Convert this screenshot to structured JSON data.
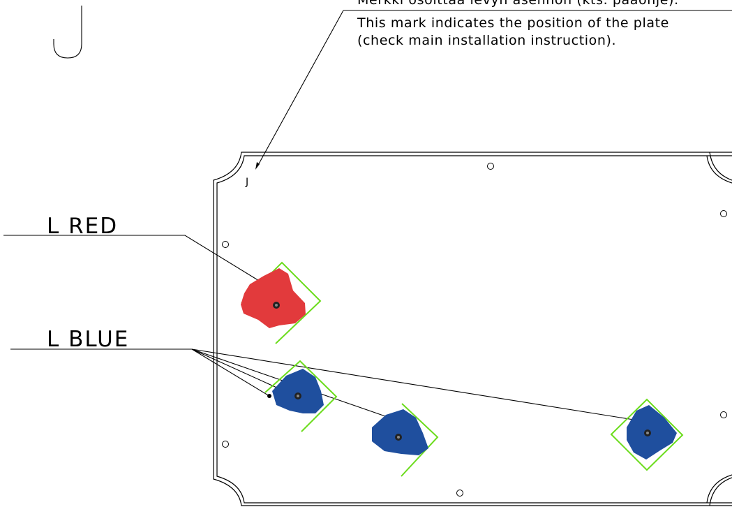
{
  "notes": {
    "finnish": "Merkki osoittaa levyn asennon (kts. paaohje).",
    "english_line1": "This mark indicates the position of the plate",
    "english_line2": "(check main installation instruction)."
  },
  "orientation_mark": "J",
  "labels": {
    "red": "L RED",
    "blue": "L BLUE"
  },
  "colors": {
    "hold_red": "#e23a3c",
    "hold_blue": "#1f4f9e",
    "guide_square": "#6bdc1c",
    "line": "#000000"
  },
  "holds": [
    {
      "name": "red-hold",
      "color": "red"
    },
    {
      "name": "blue-hold-1",
      "color": "blue"
    },
    {
      "name": "blue-hold-2",
      "color": "blue"
    },
    {
      "name": "blue-hold-3",
      "color": "blue"
    }
  ]
}
